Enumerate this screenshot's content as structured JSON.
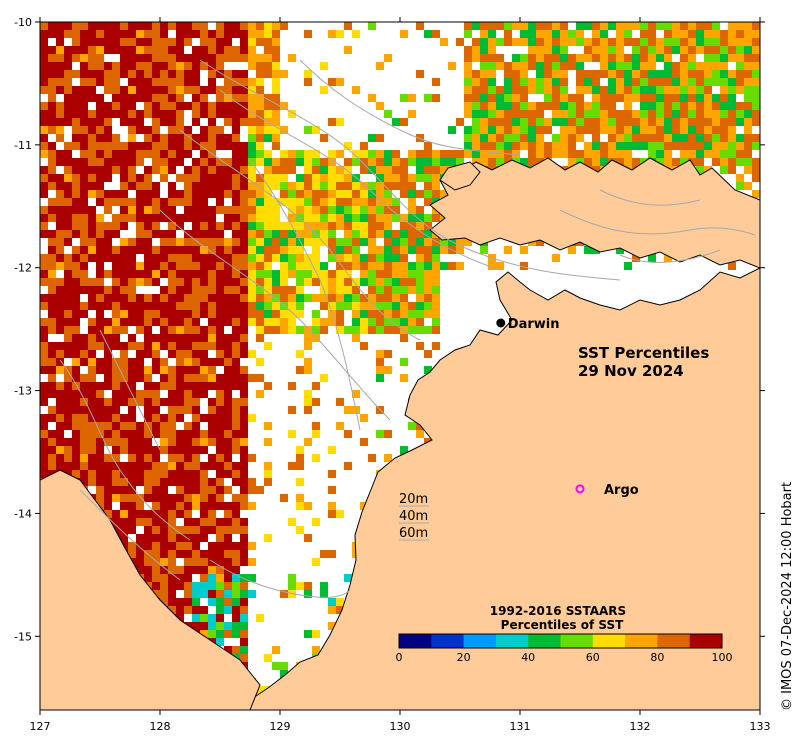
{
  "map": {
    "title_line1": "SST Percentiles",
    "title_line2": "29 Nov 2024",
    "credit": "© IMOS 07-Dec-2024 12:00 Hobart",
    "colors": {
      "land": "#ffcc99",
      "nodata": "#ffffff",
      "contour": "#a8a8a8",
      "coast": "#000000"
    }
  },
  "axes": {
    "x_ticks": [
      "127",
      "128",
      "129",
      "130",
      "131",
      "132",
      "133"
    ],
    "y_ticks": [
      "-10",
      "-11",
      "-12",
      "-13",
      "-14",
      "-15"
    ],
    "x_range": [
      127,
      133
    ],
    "y_range": [
      -15.6,
      -10
    ]
  },
  "places": [
    {
      "name": "Darwin",
      "lon": 130.84,
      "lat": -12.45,
      "marker": "filled-dot",
      "color": "#000000"
    },
    {
      "name": "Argo",
      "lon": 131.5,
      "lat": -13.8,
      "marker": "open-circle",
      "color": "#ff00ff"
    }
  ],
  "depth_legend": {
    "items": [
      "20m",
      "40m",
      "60m"
    ]
  },
  "colorbar": {
    "title_line1": "1992-2016 SSTAARS",
    "title_line2": "Percentiles of SST",
    "tick_labels": [
      "0",
      "20",
      "40",
      "60",
      "80",
      "100"
    ],
    "colors": [
      "#000080",
      "#0033cc",
      "#0099ff",
      "#00cccc",
      "#00bb33",
      "#66dd00",
      "#ffdd00",
      "#ffa500",
      "#dd6600",
      "#aa0000"
    ]
  }
}
